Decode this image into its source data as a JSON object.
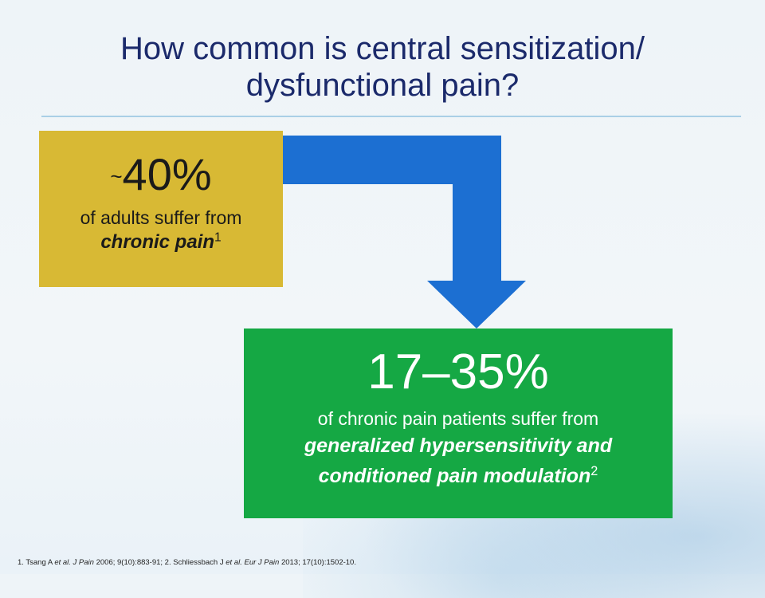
{
  "slide": {
    "title_line1": "How common is central sensitization/",
    "title_line2": "dysfunctional pain?"
  },
  "colors": {
    "title": "#1b2a6b",
    "arrow": "#1c6fd2",
    "yellow_box": "#d8b934",
    "green_box": "#15a844"
  },
  "stat1": {
    "tilde": "~",
    "value": "40%",
    "desc": "of adults suffer from",
    "emph": "chronic pain",
    "ref": "1"
  },
  "stat2": {
    "value": "17–35%",
    "desc": "of chronic pain patients suffer from",
    "emph_line1": "generalized hypersensitivity and",
    "emph_line2": "conditioned pain modulation",
    "ref": "2"
  },
  "footnote": {
    "n1": "1. Tsang A ",
    "etal1": "et al. J Pain",
    "c1": " 2006; 9(10):883-91; 2. Schliessbach J ",
    "etal2": "et al. Eur J Pain",
    "c2": " 2013; 17(10):1502-10."
  }
}
